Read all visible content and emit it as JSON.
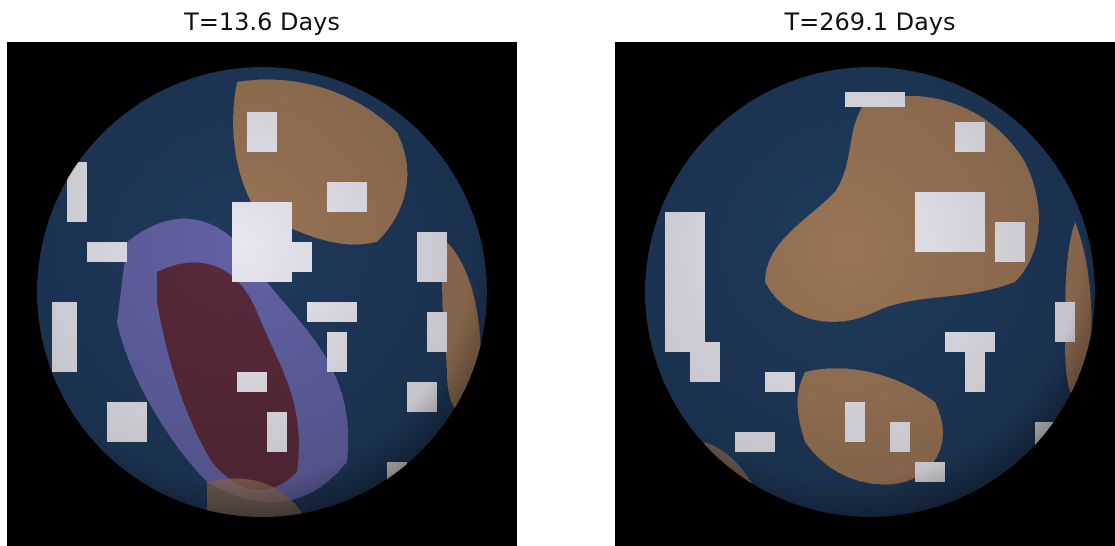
{
  "panels": [
    {
      "title": "T=13.6 Days",
      "palette": {
        "ocean": "#1f3a5c",
        "ocean_light": "#2e4d78",
        "land": "#9a7556",
        "ice": "#e8e6ee",
        "purple": "#6e6ab0",
        "dark_red": "#5a2a3a"
      }
    },
    {
      "title": "T=269.1 Days",
      "palette": {
        "ocean": "#1f3a5c",
        "ocean_light": "#2e4d78",
        "land": "#9a7556",
        "ice": "#e8e6ee"
      }
    }
  ],
  "colors": {
    "background": "#000000",
    "title_text": "#111111"
  }
}
